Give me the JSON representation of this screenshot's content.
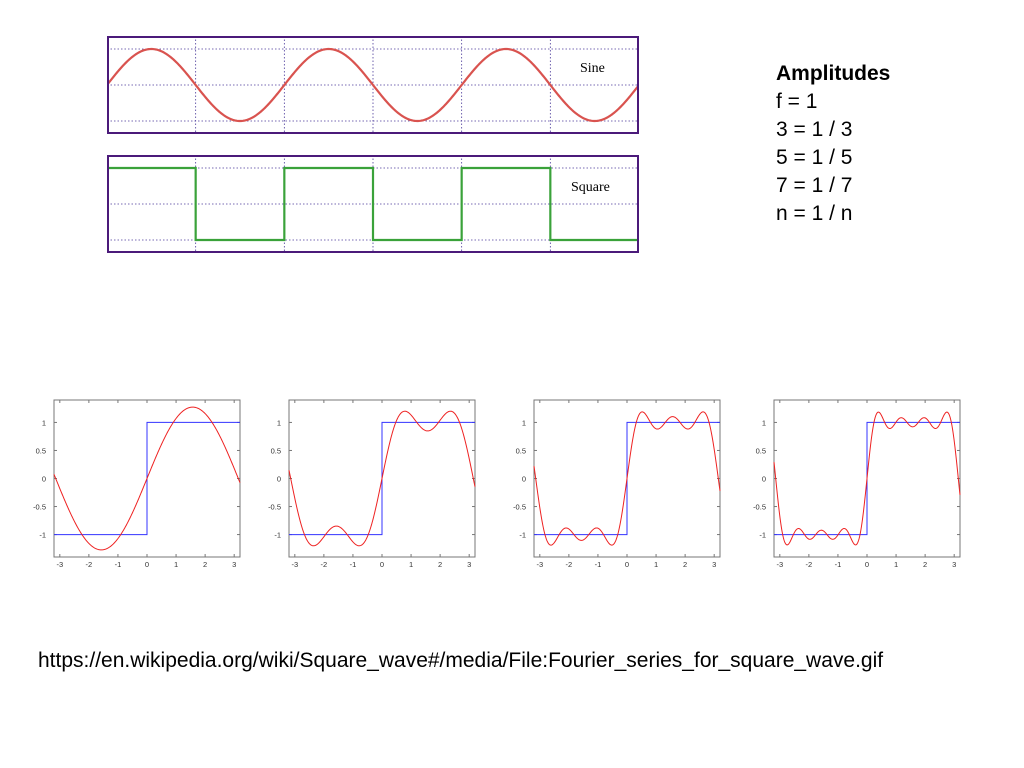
{
  "amplitudes": {
    "heading": "Amplitudes",
    "lines": [
      "f = 1",
      "3 = 1 / 3",
      "5 = 1 / 5",
      "7 = 1 / 7",
      "n = 1 / n"
    ]
  },
  "source_url": "https://en.wikipedia.org/wiki/Square_wave#/media/File:Fourier_series_for_square_wave.gif",
  "colors": {
    "sine": "#d9534f",
    "square": "#3aa23a",
    "frame": "#4b1a7a",
    "grid": "#4b3a9a",
    "target": "#3333ff",
    "approx": "#ee2222"
  },
  "chart_data": [
    {
      "type": "line",
      "series": [
        {
          "name": "Sine",
          "function": "sin"
        }
      ],
      "cycles": 3,
      "grid": true
    },
    {
      "type": "line",
      "series": [
        {
          "name": "Square",
          "function": "square"
        }
      ],
      "cycles": 3,
      "grid": true
    },
    {
      "type": "line",
      "xlim": [
        -3.2,
        3.2
      ],
      "ylim": [
        -1.4,
        1.4
      ],
      "xticks": [
        -3,
        -2,
        -1,
        0,
        1,
        2,
        3
      ],
      "yticks": [
        1,
        0.5,
        0,
        -0.5,
        -1
      ],
      "xtick_labels": [
        "-3",
        "-2",
        "-1",
        "0",
        "1",
        "2",
        "3"
      ],
      "ytick_labels": [
        "1",
        "0.5",
        "0",
        "-0.5",
        "-1"
      ],
      "harmonics": [
        1
      ],
      "series": [
        {
          "function": "square_target"
        },
        {
          "function": "fourier_partial_sum"
        }
      ]
    },
    {
      "type": "line",
      "xlim": [
        -3.2,
        3.2
      ],
      "ylim": [
        -1.4,
        1.4
      ],
      "xticks": [
        -3,
        -2,
        -1,
        0,
        1,
        2,
        3
      ],
      "yticks": [
        1,
        0.5,
        0,
        -0.5,
        -1
      ],
      "xtick_labels": [
        "-3",
        "-2",
        "-1",
        "0",
        "1",
        "2",
        "3"
      ],
      "ytick_labels": [
        "1",
        "0.5",
        "0",
        "-0.5",
        "-1"
      ],
      "harmonics": [
        1,
        3
      ],
      "series": [
        {
          "function": "square_target"
        },
        {
          "function": "fourier_partial_sum"
        }
      ]
    },
    {
      "type": "line",
      "xlim": [
        -3.2,
        3.2
      ],
      "ylim": [
        -1.4,
        1.4
      ],
      "xticks": [
        -3,
        -2,
        -1,
        0,
        1,
        2,
        3
      ],
      "yticks": [
        1,
        0.5,
        0,
        -0.5,
        -1
      ],
      "xtick_labels": [
        "-3",
        "-2",
        "-1",
        "0",
        "1",
        "2",
        "3"
      ],
      "ytick_labels": [
        "1",
        "0.5",
        "0",
        "-0.5",
        "-1"
      ],
      "harmonics": [
        1,
        3,
        5
      ],
      "series": [
        {
          "function": "square_target"
        },
        {
          "function": "fourier_partial_sum"
        }
      ]
    },
    {
      "type": "line",
      "xlim": [
        -3.2,
        3.2
      ],
      "ylim": [
        -1.4,
        1.4
      ],
      "xticks": [
        -3,
        -2,
        -1,
        0,
        1,
        2,
        3
      ],
      "yticks": [
        1,
        0.5,
        0,
        -0.5,
        -1
      ],
      "xtick_labels": [
        "-3",
        "-2",
        "-1",
        "0",
        "1",
        "2",
        "3"
      ],
      "ytick_labels": [
        "1",
        "0.5",
        "0",
        "-0.5",
        "-1"
      ],
      "harmonics": [
        1,
        3,
        5,
        7
      ],
      "series": [
        {
          "function": "square_target"
        },
        {
          "function": "fourier_partial_sum"
        }
      ]
    }
  ]
}
